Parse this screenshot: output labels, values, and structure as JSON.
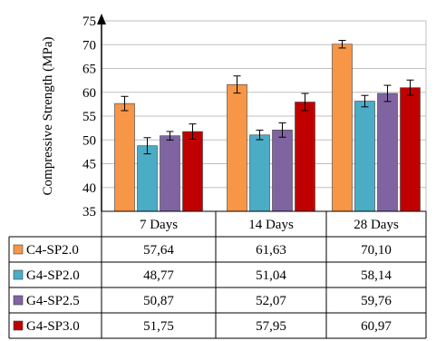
{
  "chart_data": {
    "type": "bar",
    "ylabel": "Compressive Strength (MPa)",
    "ylim": [
      35,
      75
    ],
    "yticks": [
      35,
      40,
      45,
      50,
      55,
      60,
      65,
      70,
      75
    ],
    "categories": [
      "7 Days",
      "14 Days",
      "28 Days"
    ],
    "grid": true,
    "legend": "table-rows-left",
    "series": [
      {
        "name": "C4-SP2.0",
        "color": "#F79646",
        "values": [
          57.64,
          61.63,
          70.1
        ],
        "labels": [
          "57,64",
          "61,63",
          "70,10"
        ],
        "errors": [
          1.5,
          1.8,
          0.8
        ]
      },
      {
        "name": "G4-SP2.0",
        "color": "#4BACC6",
        "values": [
          48.77,
          51.04,
          58.14
        ],
        "labels": [
          "48,77",
          "51,04",
          "58,14"
        ],
        "errors": [
          1.7,
          1.0,
          1.2
        ]
      },
      {
        "name": "G4-SP2.5",
        "color": "#8064A2",
        "values": [
          50.87,
          52.07,
          59.76
        ],
        "labels": [
          "50,87",
          "52,07",
          "59,76"
        ],
        "errors": [
          0.9,
          1.5,
          1.7
        ]
      },
      {
        "name": "G4-SP3.0",
        "color": "#C00000",
        "values": [
          51.75,
          57.95,
          60.97
        ],
        "labels": [
          "51,75",
          "57,95",
          "60,97"
        ],
        "errors": [
          1.6,
          1.8,
          1.6
        ]
      }
    ]
  }
}
